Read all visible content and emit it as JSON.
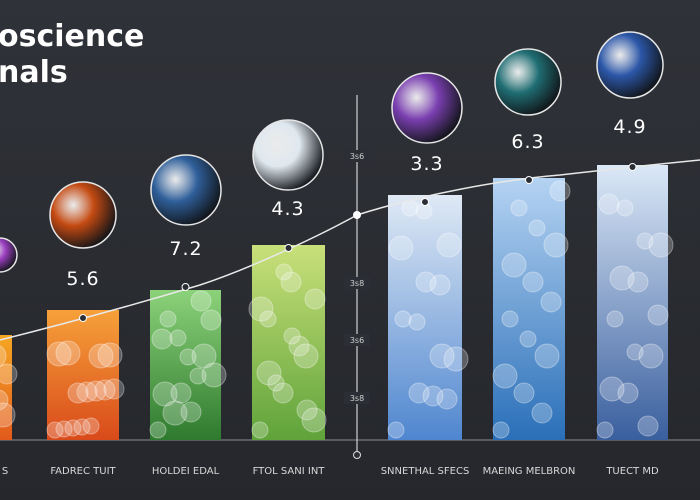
{
  "header": {
    "title_lines": [
      "oscience",
      "nals"
    ]
  },
  "axis_labels": [
    "3s6",
    "3s8",
    "3s6",
    "3s8"
  ],
  "items": [
    {
      "label": "S"
    },
    {
      "label": "FADREC TUIT",
      "value": 5.6
    },
    {
      "label": "HOLDEI EDAL",
      "value": 7.2
    },
    {
      "label": "FTOL SANI INT",
      "value": 4.3
    },
    {
      "label": "SNNETHAL SFECS",
      "value": 3.3
    },
    {
      "label": "MAEING MELBRON",
      "value": 6.3
    },
    {
      "label": "TUECT MD",
      "value": 4.9
    }
  ]
}
